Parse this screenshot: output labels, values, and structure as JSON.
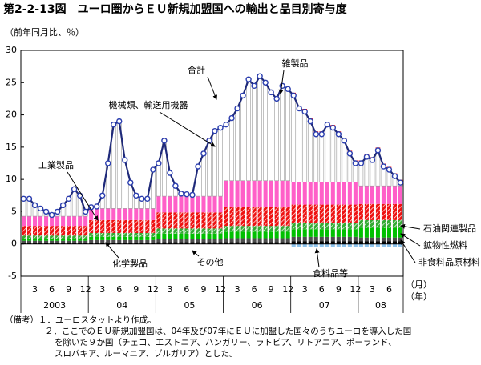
{
  "chart_data": {
    "type": "bar",
    "title": "第2-2-13図　ユーロ圏からＥＵ新規加盟国への輸出と品目別寄与度",
    "y_unit": "（前年同月比、％）",
    "x_unit_labels": [
      "（月）",
      "（年）"
    ],
    "years": [
      "2003",
      "04",
      "05",
      "06",
      "07",
      "08"
    ],
    "categories": [
      null,
      null,
      "3",
      null,
      null,
      "6",
      null,
      null,
      "9",
      null,
      null,
      "12",
      null,
      null,
      "3",
      null,
      null,
      "6",
      null,
      null,
      "9",
      null,
      null,
      "12",
      null,
      null,
      "3",
      null,
      null,
      "6",
      null,
      null,
      "9",
      null,
      null,
      "12",
      null,
      null,
      "3",
      null,
      null,
      "6",
      null,
      null,
      "9",
      null,
      null,
      "12",
      null,
      null,
      "3",
      null,
      null,
      "6",
      null,
      null,
      "9",
      null,
      null,
      "12",
      null,
      null,
      "3",
      null,
      null,
      "6",
      null,
      null
    ],
    "ylim": [
      -5,
      30
    ],
    "yticks": [
      -5,
      0,
      5,
      10,
      15,
      20,
      25,
      30
    ],
    "series": [
      {
        "name": "食料品等",
        "color": "#000000",
        "values": [
          0.2,
          0.2,
          0.2,
          0.2,
          0.2,
          0.2,
          0.2,
          0.2,
          0.2,
          0.2,
          0.2,
          0.2,
          0.2,
          0.2,
          0.2,
          0.2,
          0.2,
          0.2,
          0.2,
          0.2,
          0.2,
          0.2,
          0.2,
          0.2,
          0.3,
          0.3,
          0.3,
          0.3,
          0.3,
          0.3,
          0.3,
          0.3,
          0.3,
          0.3,
          0.3,
          0.3,
          0.3,
          0.3,
          0.3,
          0.3,
          0.3,
          0.3,
          0.3,
          0.3,
          0.3,
          0.3,
          0.3,
          0.3,
          0.4,
          0.4,
          0.4,
          0.4,
          0.4,
          0.4,
          0.4,
          0.4,
          0.4,
          0.4,
          0.4,
          0.4,
          0.4,
          0.4,
          0.4,
          0.4,
          0.4,
          0.4,
          0.4,
          0.4
        ]
      },
      {
        "name": "非食料品原材料",
        "color": "#4d4d4d",
        "values": [
          0.3,
          0.3,
          0.3,
          0.3,
          0.3,
          0.3,
          0.3,
          0.3,
          0.3,
          0.3,
          0.3,
          0.3,
          0.4,
          0.4,
          0.4,
          0.4,
          0.4,
          0.4,
          0.4,
          0.4,
          0.4,
          0.4,
          0.4,
          0.4,
          0.5,
          0.5,
          0.5,
          0.5,
          0.5,
          0.5,
          0.5,
          0.5,
          0.5,
          0.5,
          0.5,
          0.5,
          0.6,
          0.6,
          0.6,
          0.6,
          0.6,
          0.6,
          0.6,
          0.6,
          0.6,
          0.6,
          0.6,
          0.6,
          0.7,
          0.7,
          0.7,
          0.7,
          0.7,
          0.7,
          0.7,
          0.7,
          0.7,
          0.7,
          0.7,
          0.7,
          0.6,
          0.6,
          0.6,
          0.6,
          0.6,
          0.6,
          0.6,
          0.6
        ]
      },
      {
        "name": "鉱物性燃料",
        "color": "#00c000",
        "values": [
          0.3,
          0.3,
          0.3,
          0.3,
          0.3,
          0.3,
          0.3,
          0.3,
          0.3,
          0.3,
          0.3,
          0.3,
          0.5,
          0.5,
          0.5,
          0.5,
          0.5,
          0.5,
          0.5,
          0.5,
          0.5,
          0.5,
          0.5,
          0.5,
          0.8,
          0.8,
          0.8,
          0.8,
          0.8,
          0.8,
          0.8,
          0.8,
          0.8,
          0.8,
          0.8,
          0.8,
          1.0,
          1.0,
          1.0,
          1.0,
          1.0,
          1.0,
          1.0,
          1.0,
          1.0,
          1.0,
          1.0,
          1.0,
          1.2,
          1.2,
          1.2,
          1.2,
          1.2,
          1.2,
          1.2,
          1.2,
          1.2,
          1.2,
          1.2,
          1.2,
          1.5,
          1.5,
          1.5,
          1.5,
          1.5,
          1.5,
          1.5,
          1.5
        ]
      },
      {
        "name": "石油関連製品",
        "color": "#33aa33",
        "pattern": true,
        "values": [
          0.5,
          0.5,
          0.5,
          0.5,
          0.5,
          0.5,
          0.5,
          0.5,
          0.5,
          0.5,
          0.5,
          0.5,
          0.6,
          0.6,
          0.6,
          0.6,
          0.6,
          0.6,
          0.6,
          0.6,
          0.6,
          0.6,
          0.6,
          0.6,
          0.8,
          0.8,
          0.8,
          0.8,
          0.8,
          0.8,
          0.8,
          0.8,
          0.8,
          0.8,
          0.8,
          0.8,
          0.9,
          0.9,
          0.9,
          0.9,
          0.9,
          0.9,
          0.9,
          0.9,
          0.9,
          0.9,
          0.9,
          0.9,
          1.0,
          1.0,
          1.0,
          1.0,
          1.0,
          1.0,
          1.0,
          1.0,
          1.0,
          1.0,
          1.0,
          1.0,
          1.2,
          1.2,
          1.2,
          1.2,
          1.2,
          1.2,
          1.2,
          1.2
        ]
      },
      {
        "name": "化学製品",
        "color": "#ee1111",
        "pattern": true,
        "values": [
          1.5,
          1.5,
          1.5,
          1.5,
          1.5,
          1.5,
          1.5,
          1.5,
          1.5,
          1.5,
          1.5,
          1.5,
          2.0,
          2.0,
          2.0,
          2.0,
          2.0,
          2.0,
          2.0,
          2.0,
          2.0,
          2.0,
          2.0,
          2.0,
          2.5,
          2.5,
          2.5,
          2.5,
          2.5,
          2.5,
          2.5,
          2.5,
          2.5,
          2.5,
          2.5,
          2.5,
          3.0,
          3.0,
          3.0,
          3.0,
          3.0,
          3.0,
          3.0,
          3.0,
          3.0,
          3.0,
          3.0,
          3.0,
          2.8,
          2.8,
          2.8,
          2.8,
          2.8,
          2.8,
          2.8,
          2.8,
          2.8,
          2.8,
          2.8,
          2.8,
          2.5,
          2.5,
          2.5,
          2.5,
          2.5,
          2.5,
          2.5,
          2.5
        ]
      },
      {
        "name": "工業製品",
        "color": "#ff5fc8",
        "values": [
          1.5,
          1.5,
          1.5,
          1.5,
          1.5,
          1.5,
          1.5,
          1.5,
          1.5,
          1.5,
          1.5,
          1.5,
          1.8,
          1.8,
          1.8,
          1.8,
          1.8,
          1.8,
          1.8,
          1.8,
          1.8,
          1.8,
          1.8,
          1.8,
          2.5,
          2.5,
          2.5,
          2.5,
          2.5,
          2.5,
          2.5,
          2.5,
          2.5,
          2.5,
          2.5,
          2.5,
          4.0,
          4.0,
          4.0,
          4.0,
          4.0,
          4.0,
          4.0,
          4.0,
          4.0,
          4.0,
          4.0,
          4.0,
          3.5,
          3.5,
          3.5,
          3.5,
          3.5,
          3.5,
          3.5,
          3.5,
          3.5,
          3.5,
          3.5,
          3.5,
          2.8,
          2.8,
          2.8,
          2.8,
          2.8,
          2.8,
          2.8,
          2.8
        ]
      },
      {
        "name": "機械類、輸送用機器",
        "color": "#ffffff",
        "values": [
          2.6,
          2.6,
          1.6,
          1.1,
          0.6,
          0.1,
          0.6,
          1.6,
          2.6,
          4.1,
          3.1,
          0.6,
          0.1,
          0.2,
          1.9,
          6.9,
          12.9,
          13.4,
          7.4,
          3.9,
          1.9,
          1.4,
          1.4,
          5.9,
          5,
          8.5,
          3.5,
          1.5,
          0.3,
          0.2,
          0.1,
          4.5,
          6.5,
          8.5,
          10,
          10.5,
          8.6,
          9.6,
          11.1,
          13.1,
          15.6,
          14.6,
          16.1,
          15.1,
          13.6,
          12.6,
          14.6,
          14.1,
          13.4,
          11.4,
          10.9,
          9.4,
          7.4,
          7.4,
          8.9,
          8.4,
          7.4,
          6.4,
          4.4,
          2.9,
          3.5,
          4.5,
          4,
          5.5,
          3,
          2.5,
          1.5,
          0.5
        ]
      },
      {
        "name": "雑製品",
        "color": "#ff0000",
        "values": [
          0.4,
          0.4,
          0.4,
          0.4,
          0.4,
          0.4,
          0.4,
          0.4,
          0.4,
          0.4,
          0.4,
          0.4,
          0.4,
          0.4,
          0.4,
          0.4,
          0.4,
          0.4,
          0.4,
          0.4,
          0.4,
          0.4,
          0.4,
          0.4,
          0.4,
          0.4,
          0.4,
          0.4,
          0.4,
          0.4,
          0.4,
          0.4,
          0.4,
          0.4,
          0.4,
          0.4,
          0.4,
          0.4,
          0.4,
          0.4,
          0.4,
          0.4,
          0.4,
          0.4,
          0.4,
          0.4,
          0.4,
          0.4,
          0.4,
          0.4,
          0.4,
          0.4,
          0.4,
          0.4,
          0.4,
          0.4,
          0.4,
          0.4,
          0.4,
          0.4,
          0.4,
          0.4,
          0.4,
          0.4,
          0.4,
          0.4,
          0.4,
          0.4
        ]
      },
      {
        "name": "その他",
        "color": "#8fc4ec",
        "values": [
          0.1,
          0.1,
          0.1,
          0.1,
          0.1,
          0.1,
          0.1,
          0.1,
          0.1,
          0.1,
          0.1,
          0.1,
          0.1,
          0.1,
          0.1,
          0.1,
          0.1,
          0.1,
          0.1,
          0.1,
          0.1,
          0.1,
          0.1,
          0.1,
          0.1,
          0.1,
          0.1,
          0.1,
          0.1,
          0.1,
          0.1,
          0.1,
          0.1,
          0.1,
          0.1,
          0.1,
          0.1,
          0.1,
          0.1,
          0.1,
          0.1,
          0.1,
          0.1,
          0.1,
          0.1,
          0.1,
          0.1,
          0.1,
          -0.5,
          -0.5,
          -0.5,
          -0.5,
          -0.5,
          -0.5,
          -0.5,
          -0.5,
          -0.5,
          -0.5,
          -0.5,
          -0.5,
          -0.5,
          -0.5,
          -0.5,
          -0.5,
          -0.5,
          -0.5,
          -0.5,
          -0.5
        ]
      },
      {
        "name": "合計",
        "type": "line",
        "color": "#1f2a7a",
        "values": [
          7,
          7,
          6,
          5.5,
          5,
          4.5,
          5,
          6,
          7,
          8.5,
          7.5,
          5,
          5.7,
          5.8,
          7.5,
          12.5,
          18.5,
          19,
          13,
          9.5,
          7.5,
          7,
          7,
          11.5,
          12.5,
          16,
          11,
          9,
          7.8,
          7.7,
          7.6,
          12,
          14,
          16,
          17.5,
          18,
          18.5,
          19.5,
          21,
          23,
          25.5,
          24.5,
          26,
          25,
          23.5,
          22.5,
          24.5,
          24,
          23,
          21,
          20.5,
          19,
          17,
          17,
          18.5,
          18,
          17,
          16,
          14,
          12.5,
          12.5,
          13.5,
          13,
          14.5,
          12,
          11.5,
          10.5,
          9.5
        ]
      }
    ],
    "notes": [
      "（備考）１．ユーロスタットより作成。",
      "２．ここでのＥＵ新規加盟国は、04年及び07年にＥＵに加盟した国々のうちユーロを導入した国",
      "を除いた９か国（チェコ、エストニア、ハンガリー、ラトビア、リトアニア、ポーランド、",
      "スロバキア、ルーマニア、ブルガリア）とした。"
    ]
  }
}
